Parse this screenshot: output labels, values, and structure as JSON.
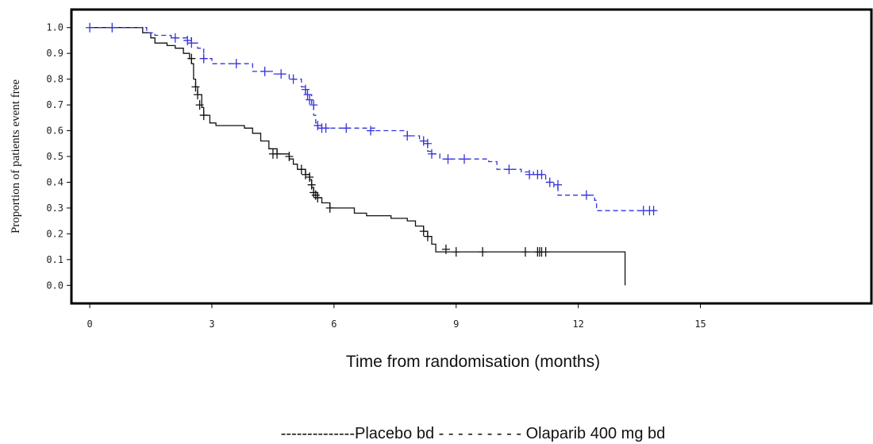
{
  "chart_data": {
    "type": "line",
    "chart_kind": "Kaplan-Meier survival curve",
    "xlabel": "Time from randomisation (months)",
    "ylabel": "Proportion of patients event free",
    "x_ticks": [
      "0",
      "3",
      "6",
      "9",
      "12",
      "15"
    ],
    "y_ticks": [
      "0.0",
      "0.1",
      "0.2",
      "0.3",
      "0.4",
      "0.5",
      "0.6",
      "0.7",
      "0.8",
      "0.9",
      "1.0"
    ],
    "xlim": [
      -0.45,
      19.2
    ],
    "ylim": [
      -0.07,
      1.07
    ],
    "grid": false,
    "legend_position": "bottom",
    "legend_text": "--------------Placebo bd - - - - - - - - - Olaparib 400 mg bd",
    "series": [
      {
        "name": "Placebo bd",
        "color": "#111111",
        "dash": "solid",
        "steps": [
          [
            0,
            1.0
          ],
          [
            1.2,
            1.0
          ],
          [
            1.3,
            0.98
          ],
          [
            1.5,
            0.96
          ],
          [
            1.6,
            0.94
          ],
          [
            1.9,
            0.93
          ],
          [
            2.1,
            0.92
          ],
          [
            2.3,
            0.9
          ],
          [
            2.45,
            0.88
          ],
          [
            2.5,
            0.86
          ],
          [
            2.55,
            0.8
          ],
          [
            2.6,
            0.77
          ],
          [
            2.65,
            0.74
          ],
          [
            2.75,
            0.69
          ],
          [
            2.8,
            0.66
          ],
          [
            2.95,
            0.63
          ],
          [
            3.1,
            0.62
          ],
          [
            3.8,
            0.61
          ],
          [
            4.0,
            0.59
          ],
          [
            4.2,
            0.56
          ],
          [
            4.4,
            0.53
          ],
          [
            4.6,
            0.51
          ],
          [
            4.9,
            0.49
          ],
          [
            5.0,
            0.47
          ],
          [
            5.1,
            0.45
          ],
          [
            5.3,
            0.43
          ],
          [
            5.4,
            0.41
          ],
          [
            5.45,
            0.38
          ],
          [
            5.5,
            0.36
          ],
          [
            5.6,
            0.34
          ],
          [
            5.7,
            0.32
          ],
          [
            5.9,
            0.3
          ],
          [
            6.5,
            0.28
          ],
          [
            6.8,
            0.27
          ],
          [
            7.4,
            0.26
          ],
          [
            7.8,
            0.25
          ],
          [
            8.0,
            0.23
          ],
          [
            8.2,
            0.21
          ],
          [
            8.3,
            0.19
          ],
          [
            8.4,
            0.16
          ],
          [
            8.5,
            0.13
          ],
          [
            13.15,
            0.13
          ],
          [
            13.15,
            0.0
          ]
        ],
        "censored": [
          [
            2.5,
            0.88
          ],
          [
            2.6,
            0.77
          ],
          [
            2.65,
            0.74
          ],
          [
            2.7,
            0.7
          ],
          [
            2.8,
            0.66
          ],
          [
            4.5,
            0.51
          ],
          [
            4.6,
            0.51
          ],
          [
            4.9,
            0.5
          ],
          [
            5.2,
            0.45
          ],
          [
            5.3,
            0.43
          ],
          [
            5.4,
            0.42
          ],
          [
            5.45,
            0.39
          ],
          [
            5.5,
            0.36
          ],
          [
            5.55,
            0.35
          ],
          [
            5.6,
            0.34
          ],
          [
            5.9,
            0.3
          ],
          [
            8.2,
            0.21
          ],
          [
            8.3,
            0.19
          ],
          [
            8.75,
            0.14
          ],
          [
            9.0,
            0.13
          ],
          [
            9.65,
            0.13
          ],
          [
            10.7,
            0.13
          ],
          [
            11.0,
            0.13
          ],
          [
            11.05,
            0.13
          ],
          [
            11.1,
            0.13
          ],
          [
            11.2,
            0.13
          ]
        ]
      },
      {
        "name": "Olaparib 400 mg bd",
        "color": "#3333dd",
        "dash": "dashed",
        "steps": [
          [
            0,
            1.0
          ],
          [
            1.3,
            1.0
          ],
          [
            1.4,
            0.98
          ],
          [
            1.6,
            0.97
          ],
          [
            2.0,
            0.96
          ],
          [
            2.5,
            0.94
          ],
          [
            2.65,
            0.92
          ],
          [
            2.8,
            0.88
          ],
          [
            3.0,
            0.86
          ],
          [
            4.0,
            0.83
          ],
          [
            4.5,
            0.82
          ],
          [
            4.9,
            0.8
          ],
          [
            5.2,
            0.77
          ],
          [
            5.3,
            0.74
          ],
          [
            5.45,
            0.7
          ],
          [
            5.5,
            0.66
          ],
          [
            5.55,
            0.63
          ],
          [
            5.6,
            0.61
          ],
          [
            6.2,
            0.61
          ],
          [
            7.0,
            0.6
          ],
          [
            7.8,
            0.58
          ],
          [
            8.1,
            0.56
          ],
          [
            8.2,
            0.55
          ],
          [
            8.3,
            0.52
          ],
          [
            8.4,
            0.51
          ],
          [
            8.6,
            0.49
          ],
          [
            9.8,
            0.48
          ],
          [
            10.0,
            0.45
          ],
          [
            10.6,
            0.44
          ],
          [
            10.9,
            0.43
          ],
          [
            11.2,
            0.4
          ],
          [
            11.4,
            0.38
          ],
          [
            11.5,
            0.35
          ],
          [
            12.4,
            0.33
          ],
          [
            12.45,
            0.29
          ],
          [
            13.9,
            0.29
          ]
        ],
        "censored": [
          [
            0,
            1.0
          ],
          [
            0.55,
            1.0
          ],
          [
            2.1,
            0.96
          ],
          [
            2.4,
            0.95
          ],
          [
            2.5,
            0.94
          ],
          [
            2.8,
            0.88
          ],
          [
            3.6,
            0.86
          ],
          [
            4.3,
            0.83
          ],
          [
            4.7,
            0.82
          ],
          [
            5.0,
            0.8
          ],
          [
            5.3,
            0.76
          ],
          [
            5.35,
            0.74
          ],
          [
            5.4,
            0.72
          ],
          [
            5.5,
            0.7
          ],
          [
            5.6,
            0.62
          ],
          [
            5.7,
            0.61
          ],
          [
            5.8,
            0.61
          ],
          [
            6.3,
            0.61
          ],
          [
            6.9,
            0.6
          ],
          [
            7.8,
            0.58
          ],
          [
            8.2,
            0.56
          ],
          [
            8.3,
            0.55
          ],
          [
            8.4,
            0.51
          ],
          [
            8.8,
            0.49
          ],
          [
            9.2,
            0.49
          ],
          [
            10.3,
            0.45
          ],
          [
            10.8,
            0.43
          ],
          [
            11.0,
            0.43
          ],
          [
            11.1,
            0.43
          ],
          [
            11.3,
            0.4
          ],
          [
            11.5,
            0.39
          ],
          [
            12.2,
            0.35
          ],
          [
            13.6,
            0.29
          ],
          [
            13.75,
            0.29
          ],
          [
            13.85,
            0.29
          ]
        ]
      }
    ]
  }
}
